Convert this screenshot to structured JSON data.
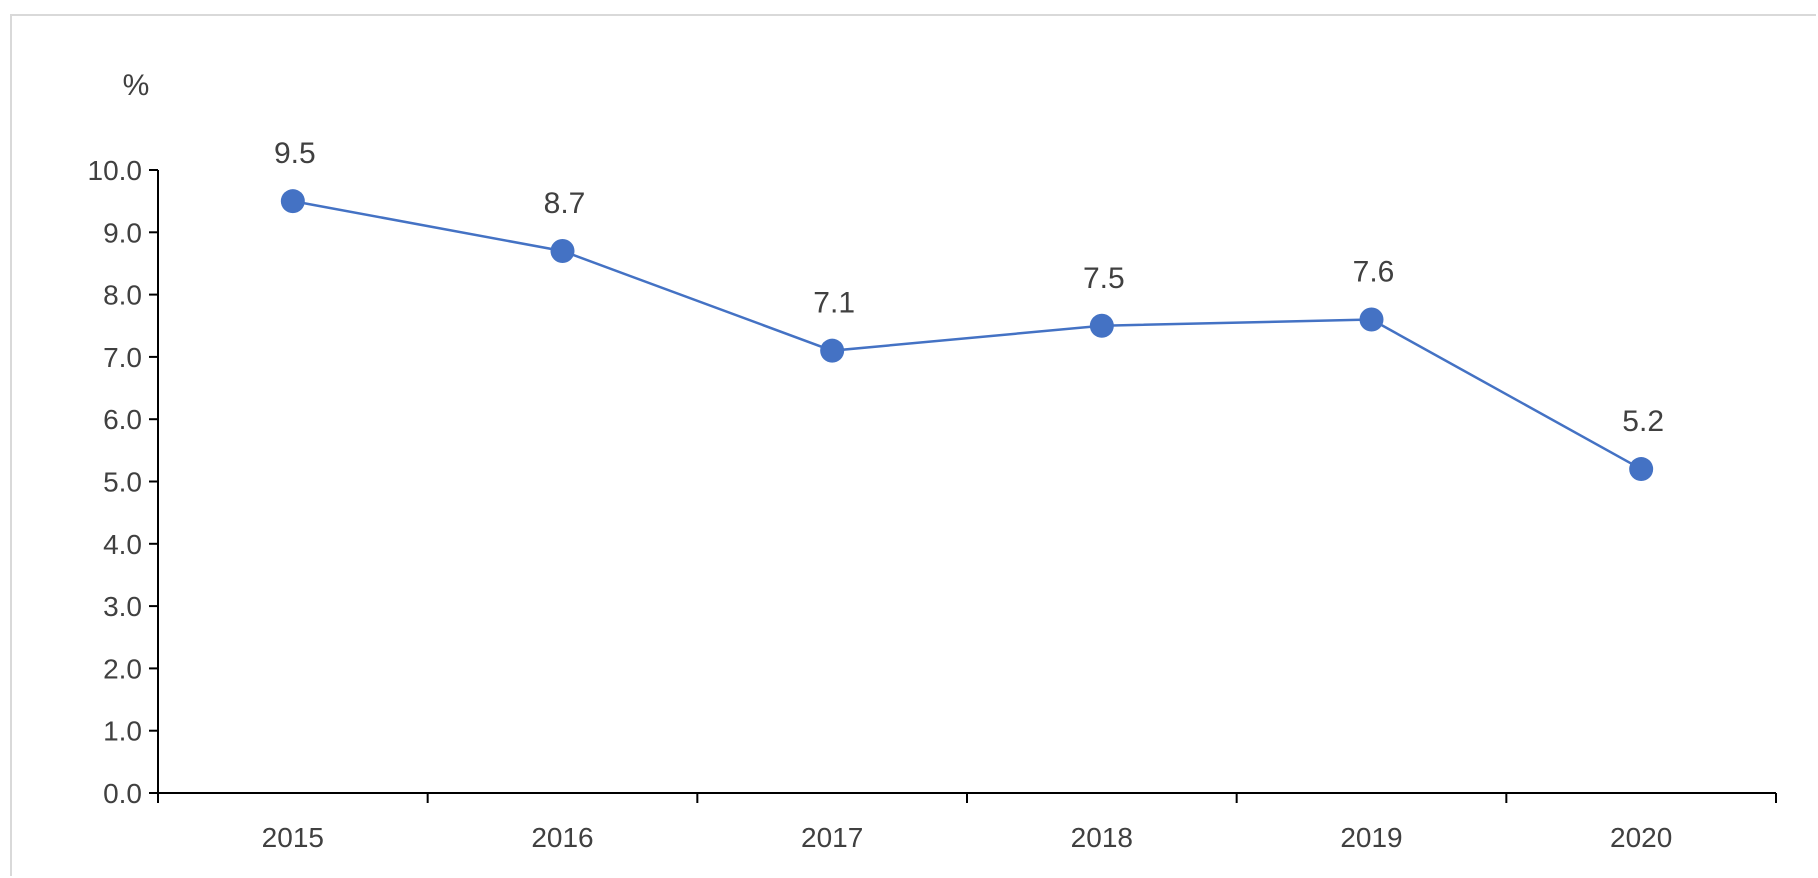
{
  "chart_data": {
    "type": "line",
    "title": "",
    "xlabel": "",
    "ylabel": "%",
    "categories": [
      "2015",
      "2016",
      "2017",
      "2018",
      "2019",
      "2020"
    ],
    "series": [
      {
        "values": [
          9.5,
          8.7,
          7.1,
          7.5,
          7.6,
          5.2
        ],
        "color": "#4472c4"
      }
    ],
    "data_labels": [
      "9.5",
      "8.7",
      "7.1",
      "7.5",
      "7.6",
      "5.2"
    ],
    "ylim": [
      0,
      10
    ],
    "ytick_labels": [
      "0.0",
      "1.0",
      "2.0",
      "3.0",
      "4.0",
      "5.0",
      "6.0",
      "7.0",
      "8.0",
      "9.0",
      "10.0"
    ],
    "grid": false,
    "legend": "none"
  }
}
